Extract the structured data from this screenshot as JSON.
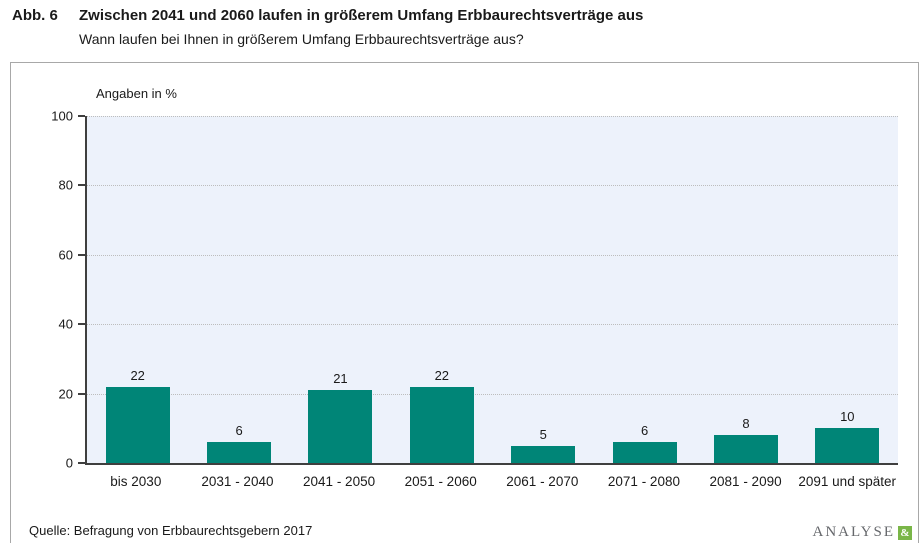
{
  "header": {
    "figure_label": "Abb. 6",
    "title": "Zwischen 2041 und 2060 laufen in größerem Umfang Erbbaurechtsverträge aus",
    "subtitle": "Wann laufen bei Ihnen in größerem Umfang Erbbaurechtsverträge aus?"
  },
  "chart_data": {
    "type": "bar",
    "axis_title": "Angaben in %",
    "categories": [
      "bis 2030",
      "2031 - 2040",
      "2041 - 2050",
      "2051 - 2060",
      "2061 - 2070",
      "2071 - 2080",
      "2081 - 2090",
      "2091 und später"
    ],
    "values": [
      22,
      6,
      21,
      22,
      5,
      6,
      8,
      10
    ],
    "ylim": [
      0,
      100
    ],
    "yticks": [
      0,
      20,
      40,
      60,
      80,
      100
    ],
    "grid": "horizontal dotted",
    "legend": "none",
    "bar_color": "#008577",
    "plot_background": "#edf2fb"
  },
  "footer": {
    "source": "Quelle: Befragung von Erbbaurechtsgebern 2017",
    "logo_text": "ANALYSE",
    "logo_symbol": "&"
  }
}
